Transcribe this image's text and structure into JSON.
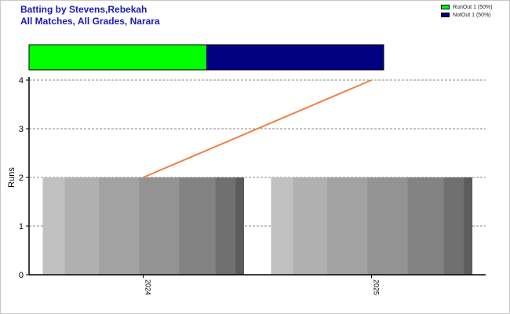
{
  "title_line1": "Batting by Stevens,Rebekah",
  "title_line2": "All Matches, All Grades, Narara",
  "legend": [
    {
      "label": "RunOut 1 (50%)",
      "color": "#00ff00"
    },
    {
      "label": "NotOut 1 (50%)",
      "color": "#000080"
    }
  ],
  "chart_data": {
    "type": "bar",
    "ylabel": "Runs",
    "xlabel": "",
    "ylim": [
      0,
      4
    ],
    "yticks": [
      0,
      1,
      2,
      3,
      4
    ],
    "grid": true,
    "categories": [
      "2024",
      "2025"
    ],
    "series": [
      {
        "type": "bar",
        "values": [
          2,
          2
        ]
      },
      {
        "type": "line",
        "values": [
          2,
          4
        ],
        "color": "#f08040"
      }
    ],
    "dismissal_bar": [
      {
        "label": "RunOut",
        "count": 1,
        "percent": 50,
        "color": "#00ff00"
      },
      {
        "label": "NotOut",
        "count": 1,
        "percent": 50,
        "color": "#000080"
      }
    ]
  }
}
